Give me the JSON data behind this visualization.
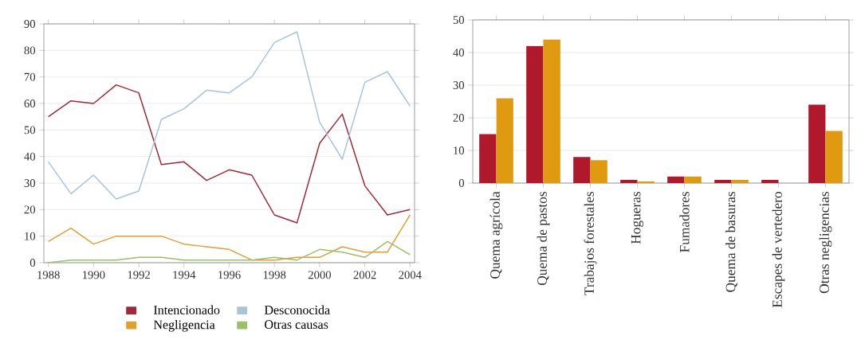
{
  "chart_data": [
    {
      "type": "line",
      "x": [
        1988,
        1989,
        1990,
        1991,
        1992,
        1993,
        1994,
        1995,
        1996,
        1997,
        1998,
        1999,
        2000,
        2001,
        2002,
        2003,
        2004
      ],
      "xlim": [
        1987.8,
        2004.2
      ],
      "xticks": [
        1988,
        1990,
        1992,
        1994,
        1996,
        1998,
        2000,
        2002,
        2004
      ],
      "ylim": [
        0,
        90
      ],
      "yticks": [
        0,
        10,
        20,
        30,
        40,
        50,
        60,
        70,
        80,
        90
      ],
      "grid": "y",
      "legend": "bottom",
      "marker": "none",
      "line_style": "solid",
      "series": [
        {
          "name": "Intencionado",
          "color": "#a0283a",
          "values": [
            55,
            61,
            60,
            67,
            64,
            37,
            38,
            31,
            35,
            33,
            18,
            15,
            45,
            56,
            29,
            18,
            20
          ]
        },
        {
          "name": "Desconocida",
          "color": "#a9c4d6",
          "values": [
            38,
            26,
            33,
            24,
            27,
            54,
            58,
            65,
            64,
            70,
            83,
            87,
            53,
            39,
            68,
            72,
            59
          ]
        },
        {
          "name": "Negligencia",
          "color": "#e0a030",
          "values": [
            8,
            13,
            7,
            10,
            10,
            10,
            7,
            6,
            5,
            1,
            1,
            2,
            2,
            6,
            4,
            4,
            18
          ]
        },
        {
          "name": "Otras causas",
          "color": "#9cbf6a",
          "values": [
            0,
            1,
            1,
            1,
            2,
            2,
            1,
            1,
            1,
            1,
            2,
            1,
            5,
            4,
            2,
            8,
            3
          ]
        }
      ]
    },
    {
      "type": "bar",
      "categories": [
        "Quema agrícola",
        "Quema de pastos",
        "Trabajos forestales",
        "Hogueras",
        "Fumadores",
        "Quema de basuras",
        "Escapes de vertedero",
        "Otras negligencias"
      ],
      "ylim": [
        0,
        50
      ],
      "yticks": [
        0,
        10,
        20,
        30,
        40,
        50
      ],
      "grid": "y",
      "series": [
        {
          "color": "#b0182c",
          "values": [
            15,
            42,
            8,
            1,
            2,
            1,
            1,
            24
          ]
        },
        {
          "color": "#e09a10",
          "values": [
            26,
            44,
            7,
            0.5,
            2,
            1,
            null,
            16
          ]
        }
      ]
    }
  ]
}
